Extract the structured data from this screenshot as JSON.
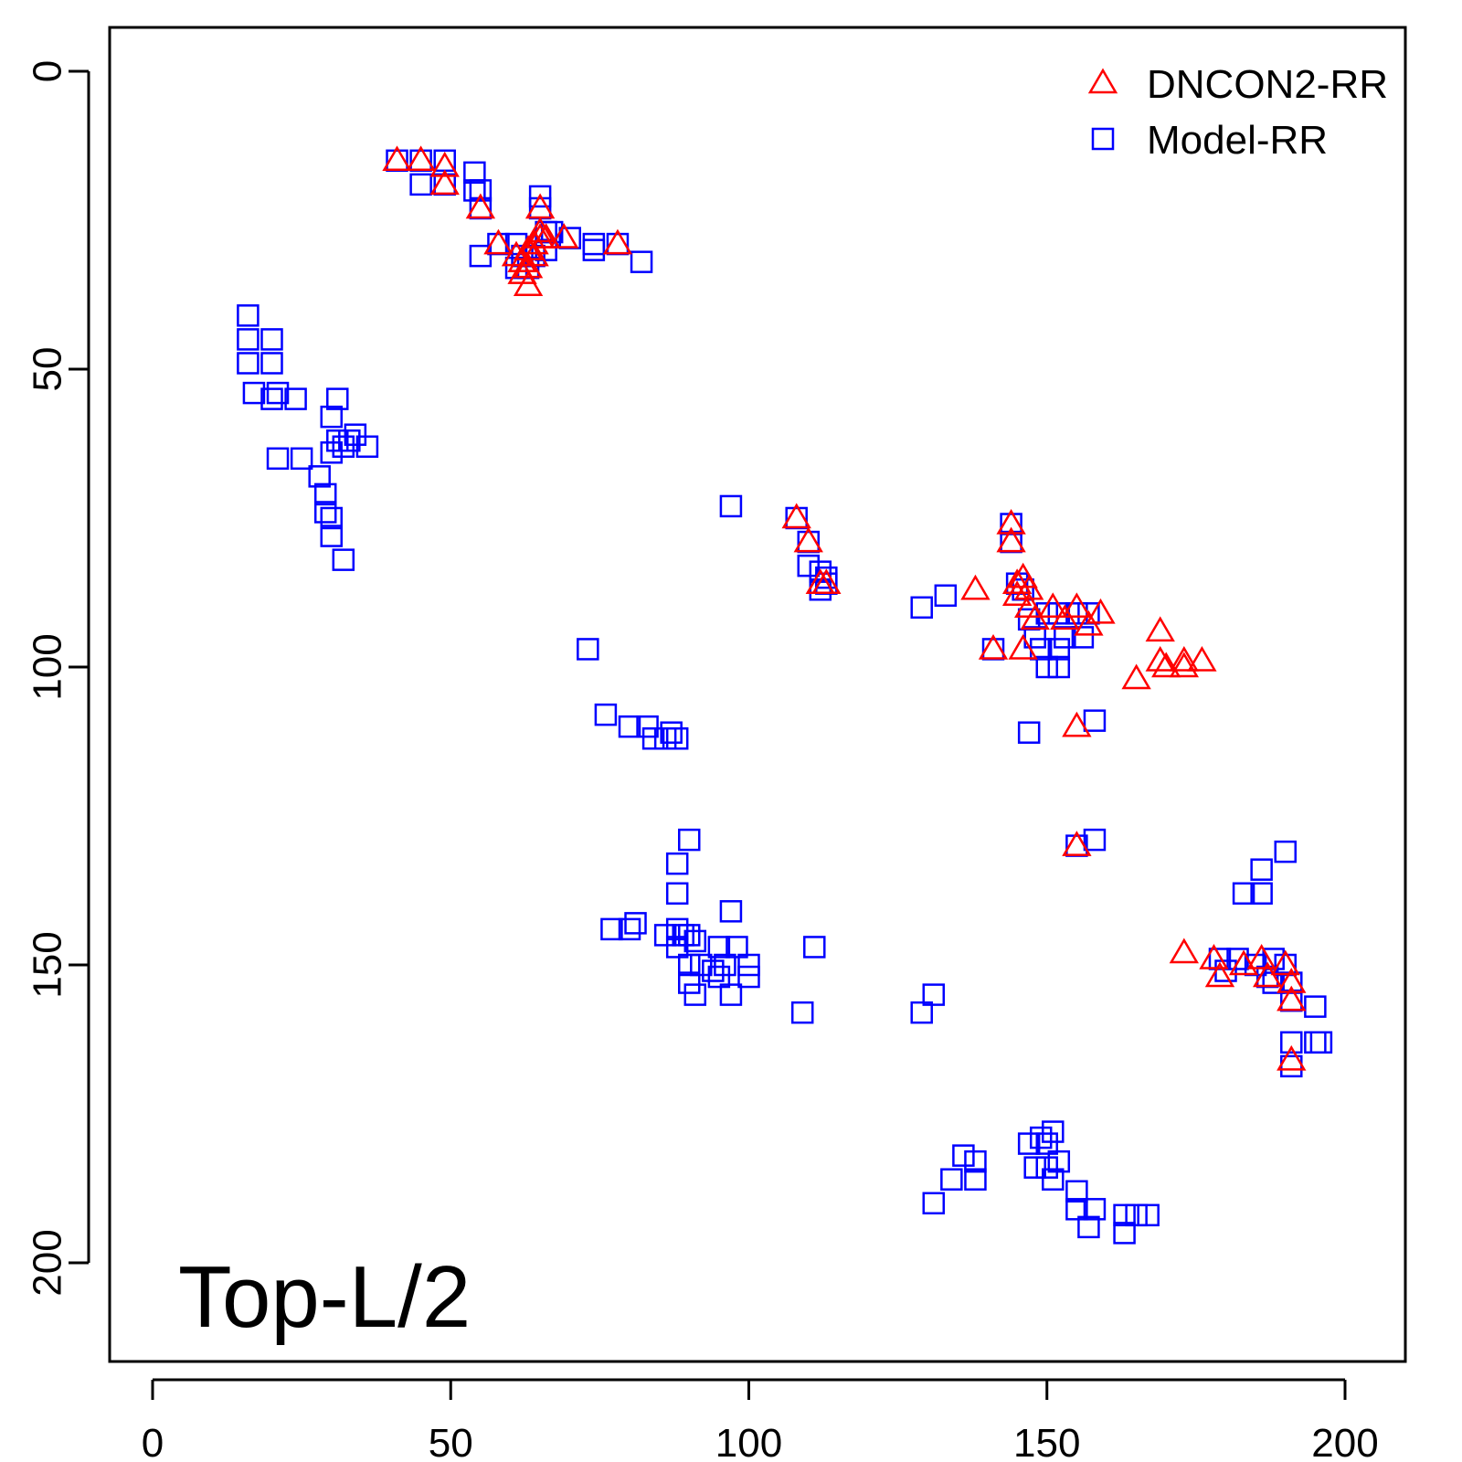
{
  "chart_data": {
    "type": "scatter",
    "title": "",
    "xlabel": "",
    "ylabel": "",
    "annotation": "Top-L/2",
    "xlim": [
      -7,
      215
    ],
    "ylim": [
      215,
      -7
    ],
    "y_reversed": true,
    "x_ticks": [
      "0",
      "50",
      "100",
      "150",
      "200"
    ],
    "y_ticks": [
      "0",
      "50",
      "100",
      "150",
      "200"
    ],
    "legend_position": "top-right",
    "series": [
      {
        "name": "DNCON2-RR",
        "marker": "triangle",
        "color": "#ff0000",
        "points": [
          [
            41,
            15
          ],
          [
            45,
            15
          ],
          [
            49,
            16
          ],
          [
            49,
            19
          ],
          [
            55,
            23
          ],
          [
            58,
            29
          ],
          [
            61,
            31
          ],
          [
            62,
            32
          ],
          [
            62,
            34
          ],
          [
            63,
            30
          ],
          [
            63,
            33
          ],
          [
            63,
            36
          ],
          [
            64,
            29
          ],
          [
            64,
            31
          ],
          [
            65,
            27
          ],
          [
            65,
            28
          ],
          [
            65,
            23
          ],
          [
            66,
            28
          ],
          [
            69,
            28
          ],
          [
            78,
            29
          ],
          [
            108,
            75
          ],
          [
            110,
            79
          ],
          [
            112,
            86
          ],
          [
            113,
            86
          ],
          [
            138,
            87
          ],
          [
            141,
            97
          ],
          [
            144,
            76
          ],
          [
            144,
            79
          ],
          [
            145,
            86
          ],
          [
            145,
            88
          ],
          [
            146,
            85
          ],
          [
            146,
            97
          ],
          [
            147,
            87
          ],
          [
            147,
            90
          ],
          [
            148,
            92
          ],
          [
            151,
            90
          ],
          [
            153,
            92
          ],
          [
            155,
            90
          ],
          [
            155,
            110
          ],
          [
            155,
            130
          ],
          [
            157,
            93
          ],
          [
            159,
            91
          ],
          [
            165,
            102
          ],
          [
            169,
            94
          ],
          [
            169,
            99
          ],
          [
            170,
            100
          ],
          [
            173,
            99
          ],
          [
            173,
            100
          ],
          [
            176,
            99
          ],
          [
            173,
            148
          ],
          [
            178,
            149
          ],
          [
            179,
            152
          ],
          [
            183,
            150
          ],
          [
            186,
            149
          ],
          [
            187,
            152
          ],
          [
            190,
            150
          ],
          [
            191,
            153
          ],
          [
            191,
            156
          ],
          [
            191,
            166
          ]
        ]
      },
      {
        "name": "Model-RR",
        "marker": "square",
        "color": "#0000ff",
        "points": [
          [
            16,
            41
          ],
          [
            16,
            45
          ],
          [
            16,
            49
          ],
          [
            17,
            54
          ],
          [
            20,
            45
          ],
          [
            20,
            49
          ],
          [
            20,
            55
          ],
          [
            21,
            54
          ],
          [
            24,
            55
          ],
          [
            21,
            65
          ],
          [
            25,
            65
          ],
          [
            28,
            68
          ],
          [
            29,
            71
          ],
          [
            29,
            74
          ],
          [
            30,
            75
          ],
          [
            30,
            78
          ],
          [
            32,
            82
          ],
          [
            30,
            58
          ],
          [
            31,
            55
          ],
          [
            30,
            64
          ],
          [
            31,
            62
          ],
          [
            32,
            63
          ],
          [
            33,
            62
          ],
          [
            34,
            61
          ],
          [
            36,
            63
          ],
          [
            41,
            15
          ],
          [
            45,
            15
          ],
          [
            49,
            15
          ],
          [
            45,
            19
          ],
          [
            49,
            19
          ],
          [
            54,
            17
          ],
          [
            54,
            20
          ],
          [
            55,
            20
          ],
          [
            55,
            23
          ],
          [
            55,
            31
          ],
          [
            58,
            29
          ],
          [
            61,
            29
          ],
          [
            61,
            33
          ],
          [
            62,
            31
          ],
          [
            63,
            33
          ],
          [
            64,
            31
          ],
          [
            65,
            21
          ],
          [
            65,
            23
          ],
          [
            66,
            27
          ],
          [
            66,
            30
          ],
          [
            67,
            27
          ],
          [
            70,
            28
          ],
          [
            74,
            29
          ],
          [
            74,
            30
          ],
          [
            78,
            29
          ],
          [
            82,
            32
          ],
          [
            97,
            73
          ],
          [
            73,
            97
          ],
          [
            76,
            108
          ],
          [
            80,
            110
          ],
          [
            83,
            110
          ],
          [
            84,
            112
          ],
          [
            86,
            112
          ],
          [
            87,
            111
          ],
          [
            88,
            112
          ],
          [
            90,
            129
          ],
          [
            88,
            133
          ],
          [
            88,
            138
          ],
          [
            77,
            144
          ],
          [
            80,
            144
          ],
          [
            81,
            143
          ],
          [
            86,
            145
          ],
          [
            88,
            144
          ],
          [
            88,
            147
          ],
          [
            89,
            145
          ],
          [
            90,
            145
          ],
          [
            91,
            146
          ],
          [
            90,
            150
          ],
          [
            90,
            153
          ],
          [
            91,
            155
          ],
          [
            92,
            150
          ],
          [
            95,
            147
          ],
          [
            94,
            151
          ],
          [
            95,
            152
          ],
          [
            96,
            150
          ],
          [
            97,
            155
          ],
          [
            98,
            147
          ],
          [
            97,
            141
          ],
          [
            100,
            150
          ],
          [
            100,
            152
          ],
          [
            108,
            75
          ],
          [
            110,
            79
          ],
          [
            110,
            83
          ],
          [
            112,
            84
          ],
          [
            112,
            87
          ],
          [
            113,
            85
          ],
          [
            113,
            86
          ],
          [
            111,
            147
          ],
          [
            109,
            158
          ],
          [
            129,
            90
          ],
          [
            133,
            88
          ],
          [
            129,
            158
          ],
          [
            131,
            155
          ],
          [
            141,
            97
          ],
          [
            144,
            79
          ],
          [
            144,
            76
          ],
          [
            145,
            86
          ],
          [
            146,
            87
          ],
          [
            147,
            92
          ],
          [
            148,
            95
          ],
          [
            149,
            97
          ],
          [
            150,
            100
          ],
          [
            152,
            97
          ],
          [
            152,
            100
          ],
          [
            150,
            91
          ],
          [
            152,
            91
          ],
          [
            153,
            95
          ],
          [
            155,
            91
          ],
          [
            156,
            95
          ],
          [
            157,
            91
          ],
          [
            147,
            111
          ],
          [
            158,
            109
          ],
          [
            158,
            129
          ],
          [
            155,
            130
          ],
          [
            131,
            190
          ],
          [
            134,
            186
          ],
          [
            136,
            182
          ],
          [
            138,
            183
          ],
          [
            138,
            186
          ],
          [
            147,
            180
          ],
          [
            148,
            184
          ],
          [
            149,
            179
          ],
          [
            150,
            180
          ],
          [
            150,
            184
          ],
          [
            151,
            186
          ],
          [
            151,
            178
          ],
          [
            152,
            183
          ],
          [
            155,
            188
          ],
          [
            155,
            191
          ],
          [
            158,
            191
          ],
          [
            157,
            194
          ],
          [
            163,
            192
          ],
          [
            163,
            195
          ],
          [
            165,
            192
          ],
          [
            167,
            192
          ],
          [
            179,
            149
          ],
          [
            180,
            151
          ],
          [
            183,
            138
          ],
          [
            182,
            149
          ],
          [
            185,
            150
          ],
          [
            186,
            138
          ],
          [
            186,
            134
          ],
          [
            187,
            152
          ],
          [
            188,
            149
          ],
          [
            188,
            153
          ],
          [
            190,
            131
          ],
          [
            190,
            150
          ],
          [
            191,
            153
          ],
          [
            191,
            156
          ],
          [
            191,
            163
          ],
          [
            191,
            167
          ],
          [
            195,
            157
          ],
          [
            195,
            163
          ],
          [
            196,
            163
          ]
        ]
      }
    ]
  }
}
